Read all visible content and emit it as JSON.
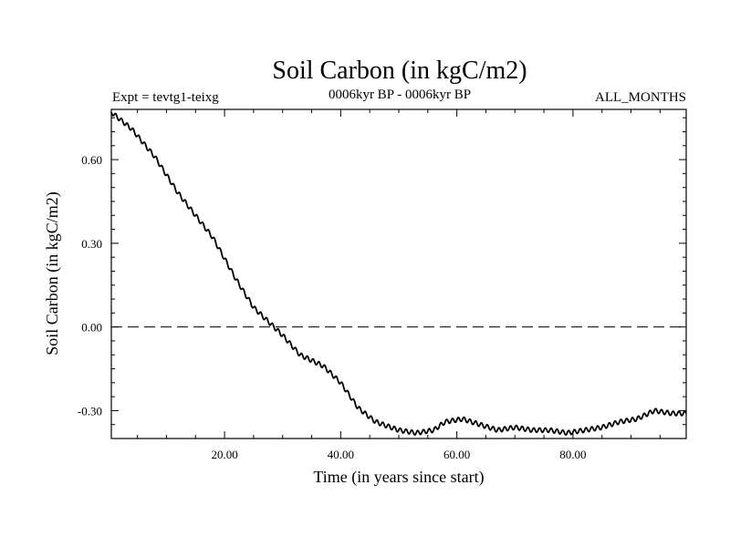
{
  "chart_data": {
    "type": "line",
    "title": "Soil Carbon (in kgC/m2)",
    "left_note": "Expt = tevtg1-teixg",
    "center_note": "0006kyr BP - 0006kyr BP",
    "right_note": "ALL_MONTHS",
    "xlabel": "Time (in years since start)",
    "ylabel": "Soil Carbon (in kgC/m2)",
    "xlim": [
      0.5,
      99.5
    ],
    "ylim": [
      -0.4,
      0.78
    ],
    "x_ticks": [
      20,
      40,
      60,
      80
    ],
    "x_tick_labels": [
      "20.00",
      "40.00",
      "60.00",
      "80.00"
    ],
    "y_ticks": [
      0.6,
      0.3,
      0.0,
      -0.3
    ],
    "y_tick_labels": [
      "0.60",
      "0.30",
      "0.00",
      "-0.30"
    ],
    "reference_line": 0.0,
    "series": [
      {
        "name": "Soil Carbon",
        "x": [
          0.5,
          4,
          8,
          12,
          15,
          18,
          22,
          25,
          27,
          30,
          33,
          37,
          40,
          43,
          46,
          50,
          53,
          56,
          58,
          61,
          64,
          67,
          70,
          73,
          76,
          79,
          82,
          85,
          88,
          91,
          94,
          97,
          99.5
        ],
        "y": [
          0.77,
          0.71,
          0.61,
          0.48,
          0.4,
          0.32,
          0.17,
          0.07,
          0.03,
          -0.03,
          -0.1,
          -0.14,
          -0.2,
          -0.29,
          -0.34,
          -0.37,
          -0.38,
          -0.37,
          -0.34,
          -0.33,
          -0.35,
          -0.37,
          -0.36,
          -0.37,
          -0.37,
          -0.38,
          -0.37,
          -0.36,
          -0.34,
          -0.33,
          -0.3,
          -0.31,
          -0.31
        ],
        "wiggle_amplitude": 0.008,
        "wiggle_period_years": 1.0
      }
    ]
  }
}
